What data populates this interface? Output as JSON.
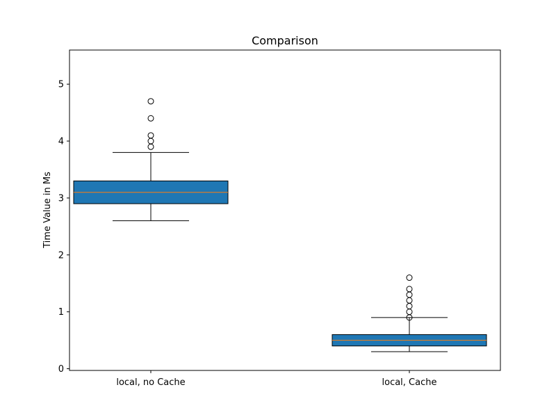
{
  "chart_data": {
    "type": "box",
    "title": "Comparison",
    "xlabel": "",
    "ylabel": "Time Value in Ms",
    "ylim": [
      -0.03,
      5.6
    ],
    "y_ticks": [
      0,
      1,
      2,
      3,
      4,
      5
    ],
    "categories": [
      "local, no Cache",
      "local, Cache"
    ],
    "boxes": [
      {
        "category": "local, no Cache",
        "whisker_low": 2.6,
        "q1": 2.9,
        "median": 3.1,
        "q3": 3.3,
        "whisker_high": 3.8,
        "outliers": [
          3.9,
          4.0,
          4.1,
          4.4,
          4.7
        ]
      },
      {
        "category": "local, Cache",
        "whisker_low": 0.3,
        "q1": 0.4,
        "median": 0.5,
        "q3": 0.6,
        "whisker_high": 0.9,
        "outliers": [
          0.9,
          1.0,
          1.1,
          1.2,
          1.3,
          1.4,
          1.6
        ]
      }
    ],
    "box_color": "#1f77b4",
    "median_color": "#ff7f0e",
    "grid": false,
    "legend": "none"
  }
}
